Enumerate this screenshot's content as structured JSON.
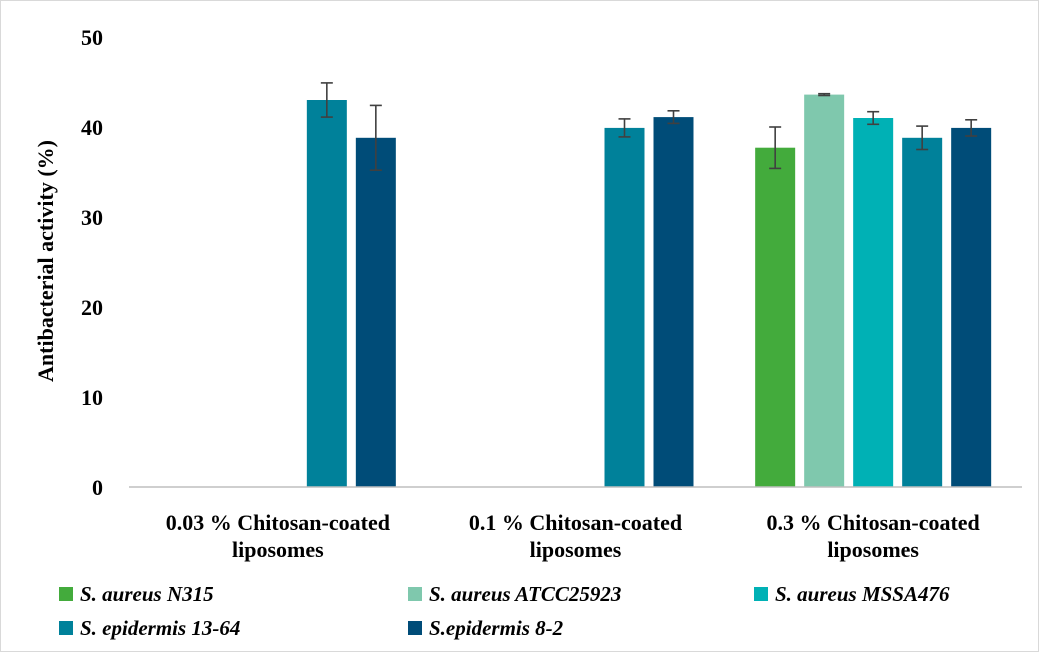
{
  "chart_data": {
    "type": "bar",
    "title": "",
    "xlabel": "",
    "ylabel": "Antibacterial activity (%)",
    "ylim": [
      0,
      50
    ],
    "yticks": [
      0,
      10,
      20,
      30,
      40,
      50
    ],
    "grid": false,
    "legend_position": "bottom",
    "categories": [
      [
        "0.03 % Chitosan-coated",
        "liposomes"
      ],
      [
        "0.1 % Chitosan-coated",
        "liposomes"
      ],
      [
        "0.3 % Chitosan-coated",
        "liposomes"
      ]
    ],
    "series": [
      {
        "name": "S. aureus N315",
        "color": "#43ab3c",
        "values": [
          null,
          null,
          37.7
        ],
        "errors": [
          null,
          null,
          2.3
        ]
      },
      {
        "name": "S. aureus ATCC25923",
        "color": "#7fc8ad",
        "values": [
          null,
          null,
          43.6
        ],
        "errors": [
          null,
          null,
          0.1
        ]
      },
      {
        "name": "S. aureus MSSA476",
        "color": "#00b1b5",
        "values": [
          null,
          null,
          41.0
        ],
        "errors": [
          null,
          null,
          0.7
        ]
      },
      {
        "name": "S. epidermis 13-64",
        "color": "#00819a",
        "values": [
          43.0,
          39.9,
          38.8
        ],
        "errors": [
          1.9,
          1.0,
          1.3
        ]
      },
      {
        "name": "S.epidermis 8-2",
        "color": "#004c78",
        "values": [
          38.8,
          41.1,
          39.9
        ],
        "errors": [
          3.6,
          0.7,
          0.9
        ]
      }
    ]
  }
}
